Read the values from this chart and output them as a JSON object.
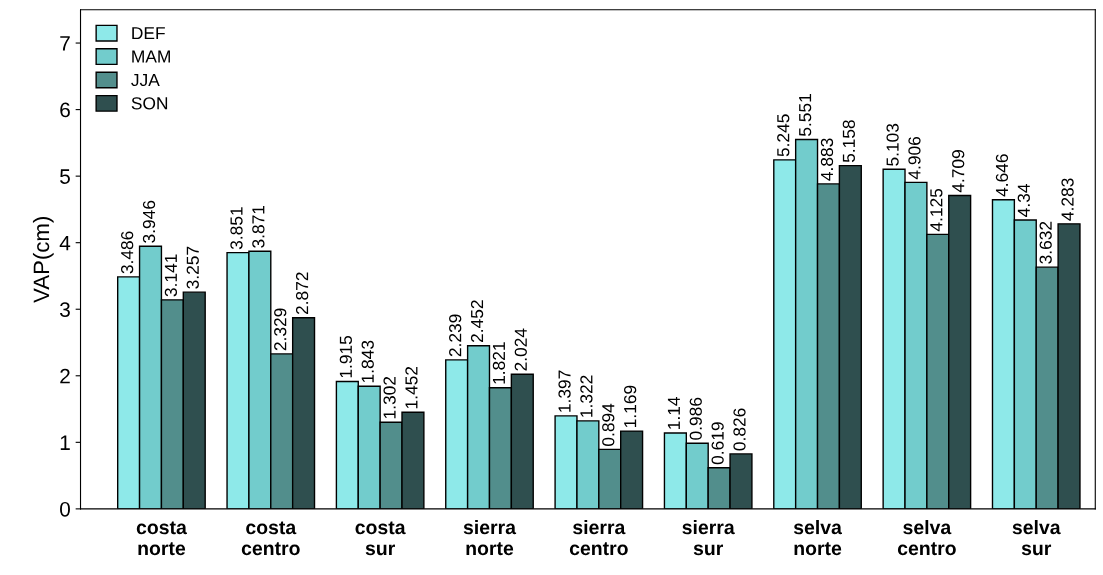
{
  "chart_data": {
    "type": "bar",
    "ylabel": "VAP(cm)",
    "categories": [
      "costa\nnorte",
      "costa\ncentro",
      "costa\nsur",
      "sierra\nnorte",
      "sierra\ncentro",
      "sierra\nsur",
      "selva\nnorte",
      "selva\ncentro",
      "selva\nsur"
    ],
    "series": [
      {
        "name": "DEF",
        "color": "#8ee9e9",
        "values": [
          3.486,
          3.851,
          1.915,
          2.239,
          1.397,
          1.14,
          5.245,
          5.103,
          4.646
        ]
      },
      {
        "name": "MAM",
        "color": "#72cccc",
        "values": [
          3.946,
          3.871,
          1.843,
          2.452,
          1.322,
          0.986,
          5.551,
          4.906,
          4.34
        ]
      },
      {
        "name": "JJA",
        "color": "#528e8c",
        "values": [
          3.141,
          2.329,
          1.302,
          1.821,
          0.894,
          0.619,
          4.883,
          4.125,
          3.632
        ]
      },
      {
        "name": "SON",
        "color": "#2f4f4f",
        "values": [
          3.257,
          2.872,
          1.452,
          2.024,
          1.169,
          0.826,
          5.158,
          4.709,
          4.283
        ]
      }
    ],
    "ylim": [
      0,
      7.5
    ],
    "yticks": [
      0,
      1,
      2,
      3,
      4,
      5,
      6,
      7
    ],
    "data_labels": true,
    "legend": "top left",
    "grid": false
  }
}
